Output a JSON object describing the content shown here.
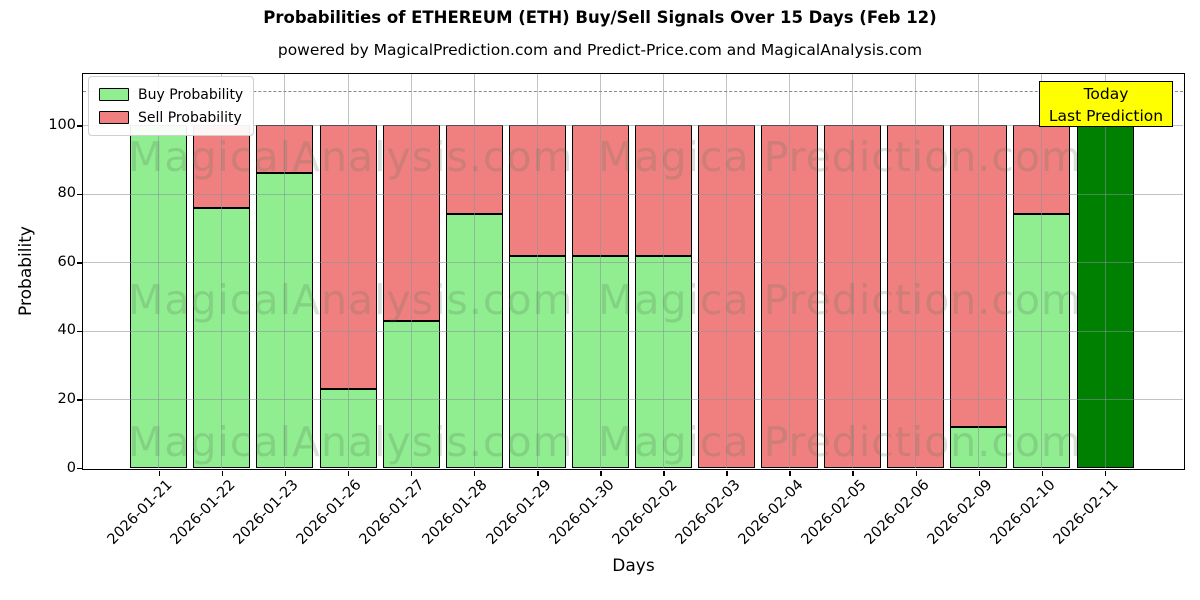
{
  "title": "Probabilities of ETHEREUM (ETH) Buy/Sell Signals Over 15 Days (Feb 12)",
  "subtitle": "powered by MagicalPrediction.com and Predict-Price.com and MagicalAnalysis.com",
  "legend": {
    "items": [
      {
        "label": "Buy Probability",
        "color": "#90EE90"
      },
      {
        "label": "Sell Probability",
        "color": "#F08080"
      }
    ]
  },
  "annotation": {
    "line1": "Today",
    "line2": "Last Prediction",
    "bg": "#FFFF00",
    "border": "#000000"
  },
  "watermarks": {
    "left": "MagicalAnalysis.com",
    "right": "Magica Prediction.com"
  },
  "chart_data": {
    "type": "bar",
    "stacked": true,
    "title": "Probabilities of ETHEREUM (ETH) Buy/Sell Signals Over 15 Days (Feb 12)",
    "xlabel": "Days",
    "ylabel": "Probability",
    "categories": [
      "2026-01-21",
      "2026-01-22",
      "2026-01-23",
      "2026-01-26",
      "2026-01-27",
      "2026-01-28",
      "2026-01-29",
      "2026-01-30",
      "2026-02-02",
      "2026-02-03",
      "2026-02-04",
      "2026-02-05",
      "2026-02-06",
      "2026-02-09",
      "2026-02-10",
      "2026-02-11"
    ],
    "series": [
      {
        "name": "Buy Probability",
        "color": "#90EE90",
        "values": [
          100,
          76,
          86,
          23,
          43,
          74,
          62,
          62,
          62,
          0,
          0,
          0,
          0,
          12,
          74,
          100
        ]
      },
      {
        "name": "Sell Probability",
        "color": "#F08080",
        "values": [
          0,
          24,
          14,
          77,
          57,
          26,
          38,
          38,
          38,
          100,
          100,
          100,
          100,
          88,
          26,
          0
        ]
      }
    ],
    "today": {
      "index": 15,
      "color": "#008000",
      "label": "Today Last Prediction"
    },
    "yticks": [
      0,
      20,
      40,
      60,
      80,
      100
    ],
    "ylim": [
      0,
      115
    ],
    "dashed_line_y": 110,
    "grid": true,
    "legend_position": "upper left",
    "bar_edge_color": "#000000"
  }
}
